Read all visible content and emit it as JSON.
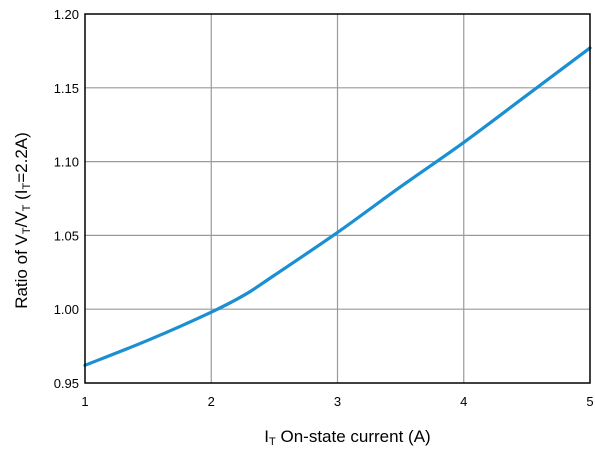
{
  "chart_data": {
    "type": "line",
    "title": "",
    "xlabel": {
      "main": "I",
      "sub": "T",
      "rest": " On-state current  (A)"
    },
    "ylabel": {
      "parts": [
        {
          "text": "Ratio of V",
          "sub": false
        },
        {
          "text": "T",
          "sub": true
        },
        {
          "text": "/V",
          "sub": false
        },
        {
          "text": "T",
          "sub": true
        },
        {
          "text": " (I",
          "sub": false
        },
        {
          "text": "T",
          "sub": true
        },
        {
          "text": "=2.2A)",
          "sub": false
        }
      ]
    },
    "xlim": [
      1,
      5
    ],
    "ylim": [
      0.95,
      1.2
    ],
    "x_ticks": [
      1,
      2,
      3,
      4,
      5
    ],
    "x_tick_labels": [
      "1",
      "2",
      "3",
      "4",
      "5"
    ],
    "y_ticks": [
      0.95,
      1.0,
      1.05,
      1.1,
      1.15,
      1.2
    ],
    "y_tick_labels": [
      "0.95",
      "1.00",
      "1.05",
      "1.10",
      "1.15",
      "1.20"
    ],
    "grid": true,
    "series": [
      {
        "color": "#1b8fd2",
        "x": [
          1.0,
          1.5,
          2.0,
          2.27,
          2.5,
          3.0,
          3.5,
          4.0,
          4.5,
          5.0
        ],
        "y": [
          0.962,
          0.979,
          0.998,
          1.01,
          1.023,
          1.052,
          1.083,
          1.113,
          1.145,
          1.177
        ]
      }
    ]
  }
}
